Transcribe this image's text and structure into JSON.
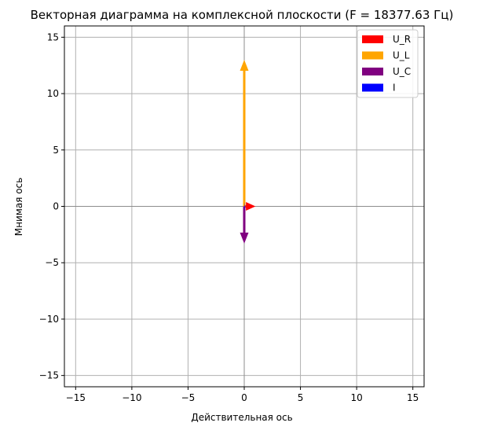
{
  "chart_data": {
    "type": "vector",
    "title": "Векторная диаграмма на комплексной плоскости (F = 18377.63 Гц)",
    "xlabel": "Действительная ось",
    "ylabel": "Мнимая ось",
    "xlim": [
      -16,
      16
    ],
    "ylim": [
      -16,
      16
    ],
    "xticks": [
      -15,
      -10,
      -5,
      0,
      5,
      10,
      15
    ],
    "yticks": [
      -15,
      -10,
      -5,
      0,
      5,
      10,
      15
    ],
    "grid": true,
    "legend_position": "top-right",
    "series": [
      {
        "name": "U_R",
        "color": "#ff0000",
        "x": 1.0,
        "y": 0.0
      },
      {
        "name": "U_L",
        "color": "#ffa500",
        "x": 0.0,
        "y": 13.0
      },
      {
        "name": "U_C",
        "color": "#800080",
        "x": 0.0,
        "y": -3.3
      },
      {
        "name": "I",
        "color": "#0000ff",
        "x": 0.05,
        "y": 0.0
      }
    ]
  }
}
